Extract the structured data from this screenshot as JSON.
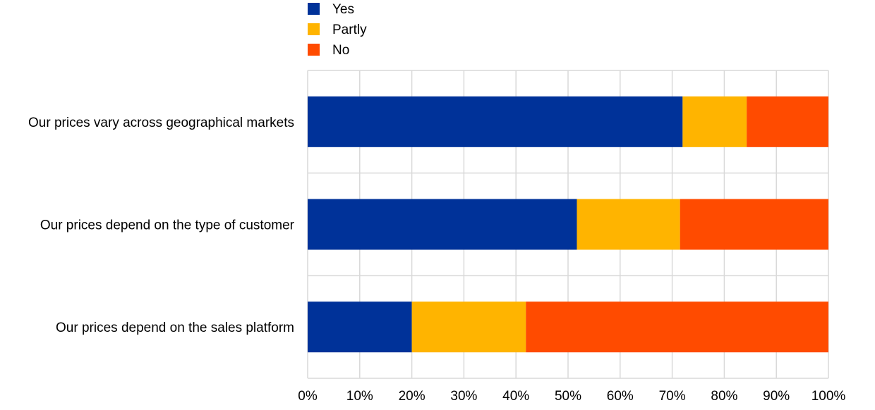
{
  "chart_data": {
    "type": "bar",
    "orientation": "horizontal",
    "stacked": true,
    "title": "",
    "xlabel": "",
    "ylabel": "",
    "categories": [
      "Our prices vary across geographical markets",
      "Our prices depend on the type of customer",
      "Our prices depend on the sales platform"
    ],
    "series": [
      {
        "name": "Yes",
        "color": "#003299",
        "values": [
          72,
          51.7,
          20
        ]
      },
      {
        "name": "Partly",
        "color": "#FFB400",
        "values": [
          12.3,
          19.8,
          21.9
        ]
      },
      {
        "name": "No",
        "color": "#FF4B00",
        "values": [
          15.7,
          28.5,
          58.1
        ]
      }
    ],
    "xlim": [
      0,
      100
    ],
    "xticks": [
      "0%",
      "10%",
      "20%",
      "30%",
      "40%",
      "50%",
      "60%",
      "70%",
      "80%",
      "90%",
      "100%"
    ],
    "grid": true,
    "legend_position": "top-center"
  }
}
